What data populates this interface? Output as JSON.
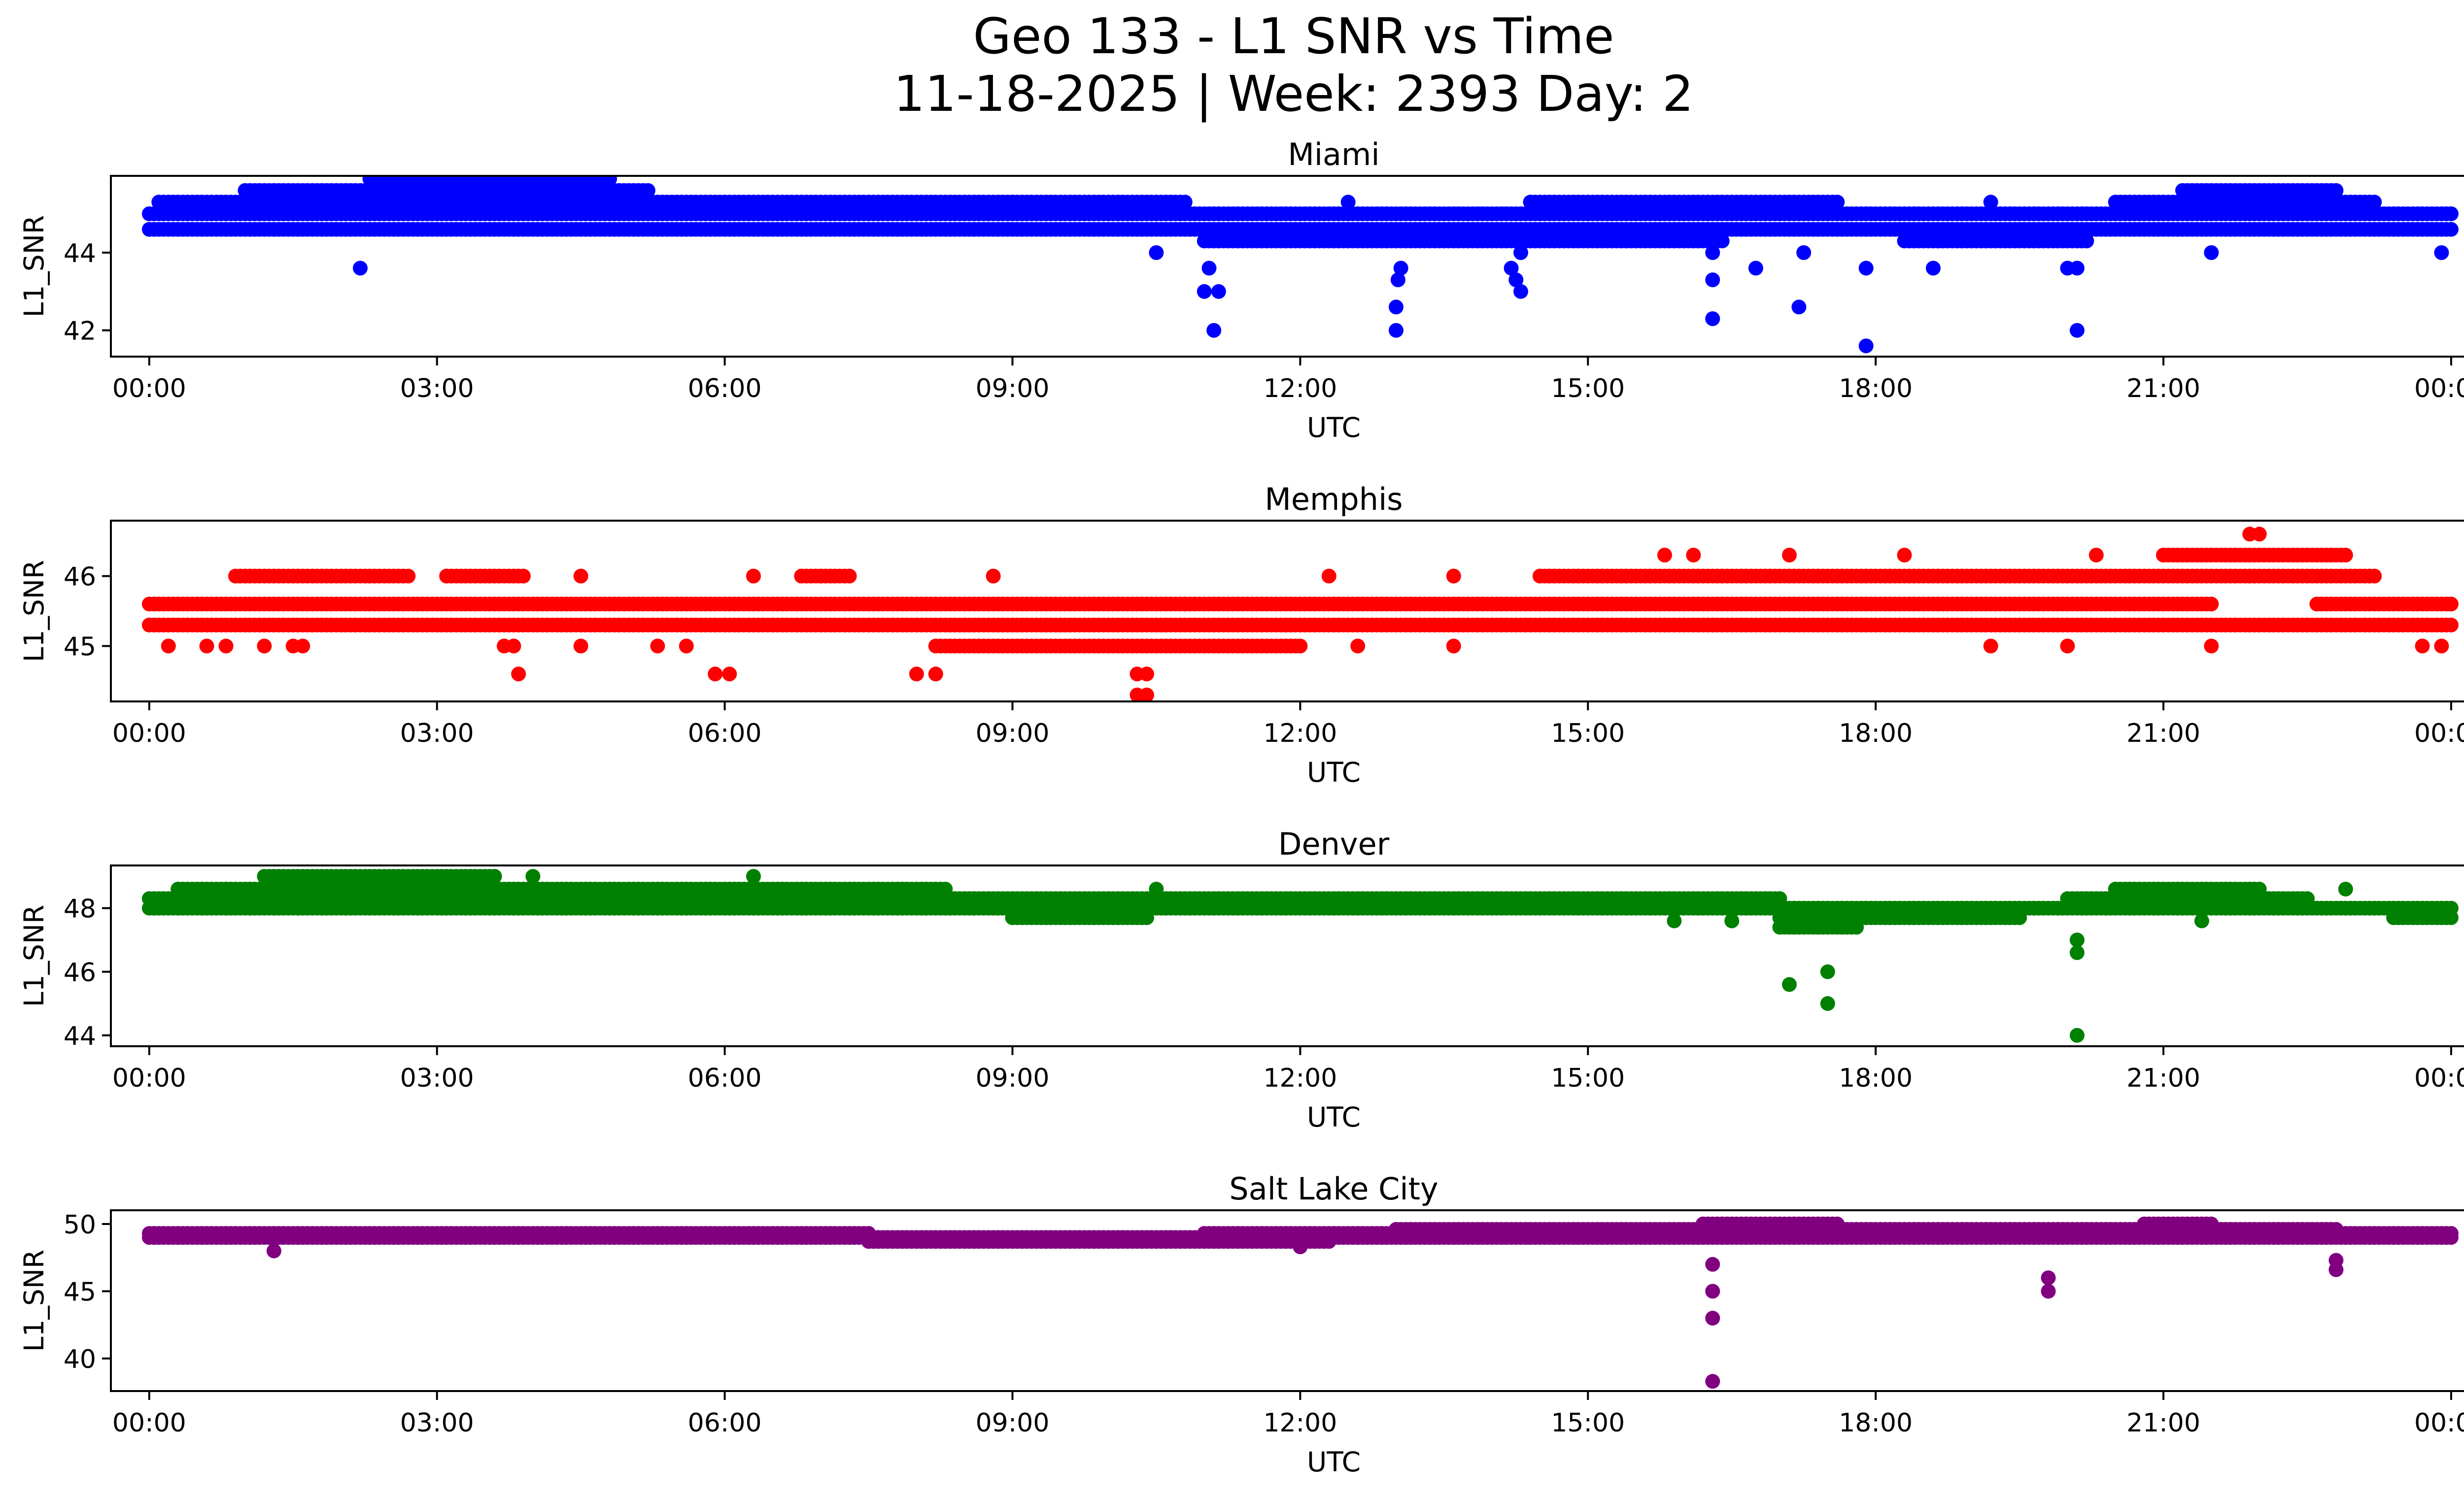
{
  "figure": {
    "title_line1": "Geo 133 - L1 SNR vs Time",
    "title_line2": "11-18-2025 | Week: 2393 Day: 2"
  },
  "chart_data": [
    {
      "type": "scatter",
      "title": "Miami",
      "xlabel": "UTC",
      "ylabel": "L1_SNR",
      "color": "#0000ff",
      "xlim": [
        -0.4,
        25.1
      ],
      "ylim": [
        41.4,
        45.9
      ],
      "xticks": [
        0,
        3,
        6,
        9,
        12,
        15,
        18,
        21,
        24
      ],
      "xtick_labels": [
        "00:00",
        "03:00",
        "06:00",
        "09:00",
        "12:00",
        "15:00",
        "18:00",
        "21:00",
        "00:00"
      ],
      "yticks": [
        42,
        44
      ],
      "ytick_labels": [
        "42",
        "44"
      ],
      "bands": [
        {
          "x": [
            0.0,
            24.0
          ],
          "y": 45.0
        },
        {
          "x": [
            0.0,
            24.0
          ],
          "y": 44.6
        },
        {
          "x": [
            0.1,
            10.8
          ],
          "y": 45.3
        },
        {
          "x": [
            1.0,
            5.2
          ],
          "y": 45.6
        },
        {
          "x": [
            2.3,
            4.8
          ],
          "y": 45.9
        },
        {
          "x": [
            11.0,
            16.4
          ],
          "y": 44.3
        },
        {
          "x": [
            14.4,
            17.6
          ],
          "y": 45.3
        },
        {
          "x": [
            18.3,
            20.2
          ],
          "y": 44.3
        },
        {
          "x": [
            20.5,
            23.2
          ],
          "y": 45.3
        },
        {
          "x": [
            21.2,
            22.8
          ],
          "y": 45.6
        }
      ],
      "points": [
        [
          2.2,
          43.6
        ],
        [
          10.5,
          44.0
        ],
        [
          11.0,
          43.0
        ],
        [
          11.05,
          43.6
        ],
        [
          11.1,
          42.0
        ],
        [
          11.15,
          43.0
        ],
        [
          13.0,
          42.0
        ],
        [
          13.0,
          42.6
        ],
        [
          13.02,
          43.3
        ],
        [
          13.05,
          43.6
        ],
        [
          14.2,
          43.6
        ],
        [
          14.25,
          43.3
        ],
        [
          14.3,
          43.0
        ],
        [
          14.3,
          44.0
        ],
        [
          16.3,
          42.3
        ],
        [
          16.3,
          43.3
        ],
        [
          16.3,
          44.0
        ],
        [
          16.75,
          43.6
        ],
        [
          17.2,
          42.6
        ],
        [
          17.25,
          44.0
        ],
        [
          17.9,
          41.6
        ],
        [
          17.9,
          43.6
        ],
        [
          18.6,
          43.6
        ],
        [
          20.0,
          43.6
        ],
        [
          20.1,
          42.0
        ],
        [
          20.1,
          43.6
        ],
        [
          21.5,
          44.0
        ],
        [
          23.9,
          44.0
        ],
        [
          12.5,
          45.3
        ],
        [
          9.0,
          45.3
        ],
        [
          19.2,
          45.3
        ]
      ]
    },
    {
      "type": "scatter",
      "title": "Memphis",
      "xlabel": "UTC",
      "ylabel": "L1_SNR",
      "color": "#ff0000",
      "xlim": [
        -0.4,
        25.1
      ],
      "ylim": [
        44.25,
        46.75
      ],
      "xticks": [
        0,
        3,
        6,
        9,
        12,
        15,
        18,
        21,
        24
      ],
      "xtick_labels": [
        "00:00",
        "03:00",
        "06:00",
        "09:00",
        "12:00",
        "15:00",
        "18:00",
        "21:00",
        "00:00"
      ],
      "yticks": [
        45,
        46
      ],
      "ytick_labels": [
        "45",
        "46"
      ],
      "bands": [
        {
          "x": [
            0.0,
            24.0
          ],
          "y": 45.3
        },
        {
          "x": [
            0.0,
            21.5
          ],
          "y": 45.6
        },
        {
          "x": [
            0.9,
            2.7
          ],
          "y": 46.0
        },
        {
          "x": [
            3.1,
            3.9
          ],
          "y": 46.0
        },
        {
          "x": [
            14.5,
            23.2
          ],
          "y": 46.0
        },
        {
          "x": [
            21.0,
            22.9
          ],
          "y": 46.3
        },
        {
          "x": [
            22.6,
            24.0
          ],
          "y": 45.6
        },
        {
          "x": [
            8.2,
            12.0
          ],
          "y": 45.0
        },
        {
          "x": [
            6.8,
            7.3
          ],
          "y": 46.0
        }
      ],
      "points": [
        [
          0.2,
          45.0
        ],
        [
          0.6,
          45.0
        ],
        [
          0.8,
          45.0
        ],
        [
          1.2,
          45.0
        ],
        [
          1.5,
          45.0
        ],
        [
          1.6,
          45.0
        ],
        [
          3.7,
          45.0
        ],
        [
          3.8,
          45.0
        ],
        [
          3.85,
          44.6
        ],
        [
          4.5,
          45.0
        ],
        [
          5.3,
          45.0
        ],
        [
          5.6,
          45.0
        ],
        [
          5.9,
          44.6
        ],
        [
          6.05,
          44.6
        ],
        [
          6.3,
          46.0
        ],
        [
          7.0,
          46.0
        ],
        [
          4.5,
          46.0
        ],
        [
          8.0,
          44.6
        ],
        [
          8.2,
          44.6
        ],
        [
          8.8,
          46.0
        ],
        [
          10.3,
          44.6
        ],
        [
          10.4,
          44.6
        ],
        [
          10.3,
          44.3
        ],
        [
          10.4,
          44.3
        ],
        [
          10.8,
          45.6
        ],
        [
          12.3,
          46.0
        ],
        [
          12.6,
          45.0
        ],
        [
          13.6,
          46.0
        ],
        [
          13.6,
          45.0
        ],
        [
          15.8,
          46.3
        ],
        [
          16.1,
          46.3
        ],
        [
          17.1,
          46.3
        ],
        [
          18.3,
          46.3
        ],
        [
          19.2,
          45.0
        ],
        [
          20.0,
          45.0
        ],
        [
          20.3,
          46.3
        ],
        [
          21.5,
          45.0
        ],
        [
          21.9,
          46.6
        ],
        [
          22.0,
          46.6
        ],
        [
          23.7,
          45.0
        ],
        [
          23.9,
          45.0
        ],
        [
          15.8,
          45.3
        ],
        [
          16.3,
          45.3
        ]
      ]
    },
    {
      "type": "scatter",
      "title": "Denver",
      "xlabel": "UTC",
      "ylabel": "L1_SNR",
      "color": "#008000",
      "xlim": [
        -0.4,
        25.1
      ],
      "ylim": [
        43.75,
        49.25
      ],
      "xticks": [
        0,
        3,
        6,
        9,
        12,
        15,
        18,
        21,
        24
      ],
      "xtick_labels": [
        "00:00",
        "03:00",
        "06:00",
        "09:00",
        "12:00",
        "15:00",
        "18:00",
        "21:00",
        "00:00"
      ],
      "yticks": [
        44,
        46,
        48
      ],
      "ytick_labels": [
        "44",
        "46",
        "48"
      ],
      "bands": [
        {
          "x": [
            0.0,
            24.0
          ],
          "y": 48.0
        },
        {
          "x": [
            0.0,
            17.0
          ],
          "y": 48.3
        },
        {
          "x": [
            0.3,
            8.3
          ],
          "y": 48.6
        },
        {
          "x": [
            1.2,
            3.6
          ],
          "y": 49.0
        },
        {
          "x": [
            17.0,
            19.5
          ],
          "y": 47.7
        },
        {
          "x": [
            17.0,
            17.8
          ],
          "y": 47.4
        },
        {
          "x": [
            20.0,
            22.5
          ],
          "y": 48.3
        },
        {
          "x": [
            20.5,
            22.0
          ],
          "y": 48.6
        },
        {
          "x": [
            23.4,
            24.0
          ],
          "y": 47.7
        },
        {
          "x": [
            9.0,
            10.4
          ],
          "y": 47.7
        }
      ],
      "points": [
        [
          3.3,
          49.0
        ],
        [
          3.6,
          49.0
        ],
        [
          4.0,
          49.0
        ],
        [
          6.3,
          49.0
        ],
        [
          6.0,
          48.0
        ],
        [
          4.6,
          48.0
        ],
        [
          15.9,
          47.6
        ],
        [
          16.5,
          47.6
        ],
        [
          17.1,
          45.6
        ],
        [
          17.5,
          46.0
        ],
        [
          17.5,
          45.0
        ],
        [
          20.1,
          47.0
        ],
        [
          20.1,
          46.6
        ],
        [
          20.1,
          44.0
        ],
        [
          21.4,
          47.6
        ],
        [
          22.9,
          48.6
        ],
        [
          10.5,
          48.6
        ]
      ]
    },
    {
      "type": "scatter",
      "title": "Salt Lake City",
      "xlabel": "UTC",
      "ylabel": "L1_SNR",
      "color": "#800080",
      "xlim": [
        -0.4,
        25.1
      ],
      "ylim": [
        37.8,
        50.8
      ],
      "xticks": [
        0,
        3,
        6,
        9,
        12,
        15,
        18,
        21,
        24
      ],
      "xtick_labels": [
        "00:00",
        "03:00",
        "06:00",
        "09:00",
        "12:00",
        "15:00",
        "18:00",
        "21:00",
        "00:00"
      ],
      "yticks": [
        40,
        45,
        50
      ],
      "ytick_labels": [
        "40",
        "45",
        "50"
      ],
      "bands": [
        {
          "x": [
            0.0,
            24.0
          ],
          "y": 49.0
        },
        {
          "x": [
            0.0,
            7.5
          ],
          "y": 49.3
        },
        {
          "x": [
            7.5,
            12.3
          ],
          "y": 48.7
        },
        {
          "x": [
            11.0,
            24.0
          ],
          "y": 49.3
        },
        {
          "x": [
            13.0,
            22.8
          ],
          "y": 49.6
        },
        {
          "x": [
            16.2,
            17.6
          ],
          "y": 50.0
        },
        {
          "x": [
            20.8,
            21.5
          ],
          "y": 50.0
        }
      ],
      "points": [
        [
          1.3,
          48.0
        ],
        [
          16.3,
          47.0
        ],
        [
          16.3,
          45.0
        ],
        [
          16.3,
          43.0
        ],
        [
          16.3,
          38.3
        ],
        [
          19.8,
          46.0
        ],
        [
          19.8,
          45.0
        ],
        [
          22.8,
          47.3
        ],
        [
          22.8,
          46.6
        ],
        [
          12.0,
          48.3
        ],
        [
          21.0,
          50.0
        ]
      ]
    }
  ]
}
